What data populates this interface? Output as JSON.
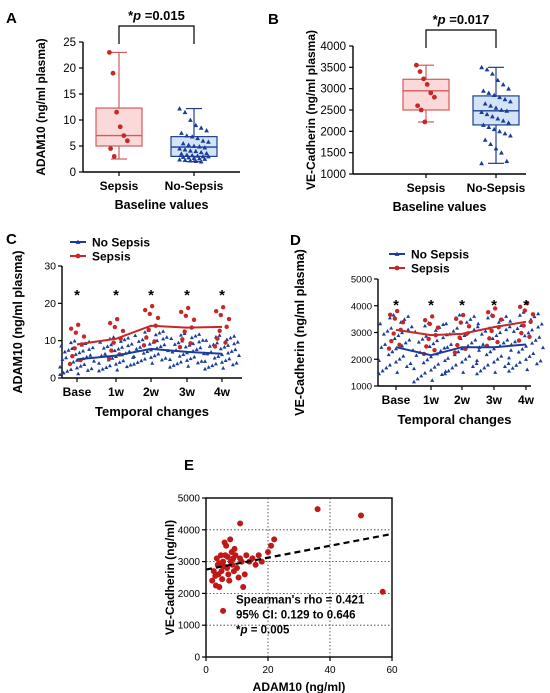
{
  "chart_data": [
    {
      "panel": "A",
      "type": "box",
      "ylabel": "ADAM10 (ng/ml plasma)",
      "xlabel": "Baseline values",
      "ylim": [
        0,
        25
      ],
      "yticks": [
        "0",
        "5",
        "10",
        "15",
        "20",
        "25"
      ],
      "categories": [
        "Sepsis",
        "No-Sepsis"
      ],
      "significance": "p =0.015",
      "boxes": [
        {
          "name": "Sepsis",
          "min": 2.5,
          "q1": 5.0,
          "median": 7.0,
          "q3": 12.3,
          "max": 23.0,
          "fill": "#fcd9d9",
          "stroke": "#d45a5a",
          "point_color": "#c62828",
          "marker": "circle",
          "points": [
            23.0,
            19.0,
            11.5,
            8.7,
            7.0,
            6.0,
            4.5,
            3.0
          ]
        },
        {
          "name": "No-Sepsis",
          "min": 2.0,
          "q1": 3.0,
          "median": 4.8,
          "q3": 6.8,
          "max": 12.2,
          "fill": "#d3e4f8",
          "stroke": "#1c3f8f",
          "point_color": "#1a3d9a",
          "marker": "triangle",
          "points": [
            12.2,
            11.5,
            10.0,
            9.0,
            8.5,
            8.0,
            7.5,
            7.0,
            6.8,
            6.5,
            6.0,
            5.8,
            5.5,
            5.2,
            5.0,
            4.9,
            4.7,
            4.5,
            4.3,
            4.1,
            4.0,
            3.8,
            3.6,
            3.5,
            3.3,
            3.2,
            3.1,
            3.0,
            3.0,
            2.9,
            2.8,
            2.7,
            2.6,
            2.5,
            2.4,
            2.3,
            2.2,
            2.1,
            2.0
          ]
        }
      ]
    },
    {
      "panel": "B",
      "type": "box",
      "ylabel": "VE-Cadherin (ng/ml plasma)",
      "xlabel": "Baseline values",
      "ylim": [
        1000,
        4000
      ],
      "yticks": [
        "1000",
        "1500",
        "2000",
        "2500",
        "3000",
        "3500",
        "4000"
      ],
      "categories": [
        "Sepsis",
        "No-Sepsis"
      ],
      "significance": "p =0.017",
      "boxes": [
        {
          "name": "Sepsis",
          "min": 2220,
          "q1": 2500,
          "median": 2950,
          "q3": 3220,
          "max": 3550,
          "fill": "#fcd9d9",
          "stroke": "#d45a5a",
          "point_color": "#c62828",
          "marker": "circle",
          "points": [
            3550,
            3400,
            3230,
            3100,
            2900,
            2800,
            2600,
            2500,
            2220
          ]
        },
        {
          "name": "No-Sepsis",
          "min": 1250,
          "q1": 2150,
          "median": 2480,
          "q3": 2830,
          "max": 3500,
          "fill": "#d3e4f8",
          "stroke": "#1c3f8f",
          "point_color": "#1a3d9a",
          "marker": "triangle",
          "points": [
            3500,
            3450,
            3350,
            3200,
            3100,
            3000,
            2950,
            2900,
            2850,
            2800,
            2750,
            2700,
            2650,
            2600,
            2550,
            2500,
            2480,
            2450,
            2400,
            2350,
            2300,
            2250,
            2200,
            2150,
            2100,
            2050,
            2000,
            1950,
            1900,
            1800,
            1700,
            1600,
            1500,
            1300,
            1250
          ]
        }
      ]
    },
    {
      "panel": "C",
      "type": "line",
      "ylabel": "ADAM10 (ng/ml plasma)",
      "xlabel": "Temporal changes",
      "ylim": [
        0,
        30
      ],
      "yticks": [
        "0",
        "10",
        "20",
        "30"
      ],
      "categories": [
        "Base",
        "1w",
        "2w",
        "3w",
        "4w"
      ],
      "star": "*",
      "series": [
        {
          "name": "No Sepsis",
          "color": "#1a3d9a",
          "marker": "triangle",
          "means": [
            5.0,
            6.0,
            7.8,
            7.0,
            6.5
          ]
        },
        {
          "name": "Sepsis",
          "color": "#c62828",
          "marker": "circle",
          "means": [
            9.0,
            10.5,
            14.0,
            13.5,
            13.7
          ]
        }
      ]
    },
    {
      "panel": "D",
      "type": "line",
      "ylabel": "VE-Cadherin (ng/ml plasma)",
      "xlabel": "Temporal changes",
      "ylim": [
        1000,
        5000
      ],
      "yticks": [
        "1000",
        "2000",
        "3000",
        "4000",
        "5000"
      ],
      "categories": [
        "Base",
        "1w",
        "2w",
        "3w",
        "4w"
      ],
      "star": "*",
      "series": [
        {
          "name": "No Sepsis",
          "color": "#1a3d9a",
          "marker": "triangle",
          "means": [
            2450,
            2150,
            2450,
            2450,
            2550
          ]
        },
        {
          "name": "Sepsis",
          "color": "#c62828",
          "marker": "circle",
          "means": [
            3100,
            2900,
            2950,
            3200,
            3400
          ]
        }
      ]
    },
    {
      "panel": "E",
      "type": "scatter",
      "xlabel": "ADAM10 (ng/ml)",
      "ylabel": "VE-Cadherin (ng/ml)",
      "xlim": [
        0,
        60
      ],
      "ylim": [
        0,
        5000
      ],
      "xticks": [
        "0",
        "20",
        "40",
        "60"
      ],
      "yticks": [
        "0",
        "1000",
        "2000",
        "3000",
        "4000",
        "5000"
      ],
      "point_color": "#c01818",
      "trend": {
        "x": [
          0,
          60
        ],
        "y": [
          2750,
          3870
        ]
      },
      "stats": [
        "Spearman's rho = 0.421",
        "95% CI: 0.129 to 0.646",
        "p = 0.005"
      ],
      "x": [
        2.0,
        2.5,
        3.0,
        3.2,
        3.5,
        3.8,
        4.0,
        4.3,
        4.5,
        4.8,
        5.0,
        5.2,
        5.5,
        5.8,
        6.0,
        6.2,
        6.5,
        6.8,
        7.0,
        7.2,
        7.5,
        7.8,
        8.0,
        8.3,
        8.5,
        8.8,
        9.0,
        9.2,
        9.5,
        10.0,
        10.5,
        11.0,
        11.5,
        12.0,
        12.5,
        13.0,
        14.0,
        15.0,
        16.0,
        17.0,
        18.0,
        20.0,
        21.0,
        22.0,
        5.5,
        11.0,
        36.0,
        50.0,
        57.0
      ],
      "y": [
        2400,
        2700,
        2550,
        2250,
        3100,
        2900,
        2600,
        2200,
        2950,
        3200,
        2700,
        2450,
        3000,
        2850,
        3600,
        3200,
        3500,
        2800,
        3150,
        2600,
        2400,
        3700,
        3000,
        3300,
        2900,
        3100,
        2700,
        3400,
        3200,
        2800,
        2500,
        3100,
        3000,
        2200,
        2600,
        3200,
        3000,
        3100,
        2900,
        3200,
        3000,
        3300,
        3500,
        3700,
        1450,
        4200,
        4650,
        4450,
        2050
      ]
    }
  ],
  "panel_labels": [
    "A",
    "B",
    "C",
    "D",
    "E"
  ],
  "sig_prefix": "*",
  "sig_p": "p"
}
